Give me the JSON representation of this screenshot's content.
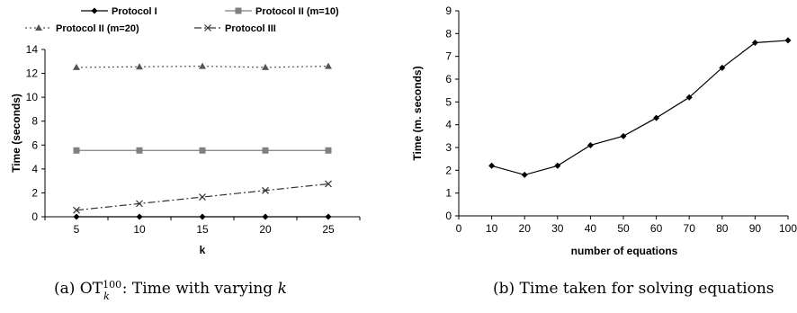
{
  "chart_data": [
    {
      "type": "line",
      "caption": {
        "prefix": "(a) OT",
        "sup": "100",
        "sub": "k",
        "suffix": ": Time with varying ",
        "italic_var": "k"
      },
      "x": [
        5,
        10,
        15,
        20,
        25
      ],
      "xticks": [
        "5",
        "10",
        "15",
        "20",
        "25"
      ],
      "xlabel": "k",
      "ylabel": "Time (seconds)",
      "ylim": [
        0,
        14
      ],
      "yticks": [
        "0",
        "2",
        "4",
        "6",
        "8",
        "10",
        "12",
        "14"
      ],
      "grid": false,
      "legend": "top",
      "series": [
        {
          "name": "Protocol I",
          "values": [
            0,
            0,
            0,
            0,
            0
          ],
          "color": "#000000",
          "marker": "diamond",
          "dash": "solid"
        },
        {
          "name": "Protocol II (m=10)",
          "values": [
            5.55,
            5.55,
            5.55,
            5.55,
            5.55
          ],
          "color": "#808080",
          "marker": "square",
          "dash": "solid"
        },
        {
          "name": "Protocol II (m=20)",
          "values": [
            12.5,
            12.55,
            12.6,
            12.5,
            12.6
          ],
          "color": "#555555",
          "marker": "triangle",
          "dash": "dotted"
        },
        {
          "name": "Protocol III",
          "values": [
            0.55,
            1.1,
            1.65,
            2.2,
            2.75
          ],
          "color": "#333333",
          "marker": "x",
          "dash": "dashdot"
        }
      ]
    },
    {
      "type": "line",
      "caption": "(b) Time taken for solving equations",
      "x": [
        10,
        20,
        30,
        40,
        50,
        60,
        70,
        80,
        90,
        100
      ],
      "xticks": [
        "0",
        "10",
        "20",
        "30",
        "40",
        "50",
        "60",
        "70",
        "80",
        "90",
        "100"
      ],
      "xlabel": "number of equations",
      "ylabel": "Time (m. seconds)",
      "xlim": [
        0,
        100
      ],
      "ylim": [
        0,
        9
      ],
      "yticks": [
        "0",
        "1",
        "2",
        "3",
        "4",
        "5",
        "6",
        "7",
        "8",
        "9"
      ],
      "grid": false,
      "series": [
        {
          "values": [
            2.2,
            1.8,
            2.2,
            3.1,
            3.5,
            4.3,
            5.2,
            6.5,
            7.6,
            7.7
          ],
          "color": "#000000",
          "marker": "diamond"
        }
      ]
    }
  ]
}
